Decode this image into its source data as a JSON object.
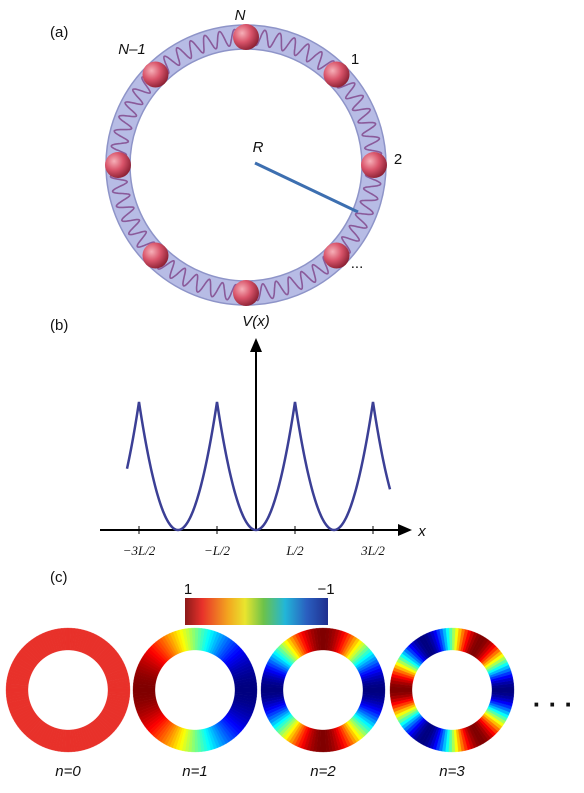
{
  "panel_a": {
    "label": "(a)",
    "particle_labels": [
      "N",
      "N–1",
      "1",
      "2",
      "..."
    ],
    "radius_label": "R"
  },
  "panel_b": {
    "label": "(b)",
    "y_axis_label": "V(x)",
    "x_axis_label": "x",
    "ticks": [
      "−3L/2",
      "−L/2",
      "L/2",
      "3L/2"
    ]
  },
  "panel_c": {
    "label": "(c)",
    "colorbar": [
      "1",
      "−1"
    ],
    "rings": [
      "n=0",
      "n=1",
      "n=2",
      "n=3"
    ],
    "ellipsis": "· · ·"
  }
}
